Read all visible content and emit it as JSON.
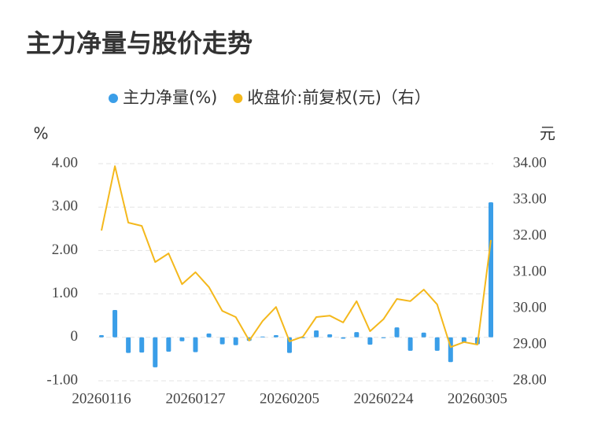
{
  "chart_data": {
    "type": "combo",
    "title": "主力净量与股价走势",
    "y_unit": "%",
    "y2_unit": "元",
    "categories": [
      "20260116",
      null,
      null,
      null,
      null,
      null,
      null,
      "20260127",
      null,
      null,
      null,
      null,
      null,
      null,
      "20260205",
      null,
      null,
      null,
      null,
      null,
      null,
      "20260224",
      null,
      null,
      null,
      null,
      null,
      null,
      "20260305",
      null
    ],
    "series": [
      {
        "name": "主力净量(%)",
        "type": "bar",
        "color": "#3a9ee8",
        "values": [
          0.05,
          0.63,
          -0.36,
          -0.35,
          -0.69,
          -0.33,
          -0.09,
          -0.34,
          0.09,
          -0.16,
          -0.18,
          -0.08,
          0.02,
          0.05,
          -0.36,
          -0.02,
          0.16,
          0.07,
          -0.03,
          0.12,
          -0.17,
          -0.02,
          0.23,
          -0.31,
          0.11,
          -0.31,
          -0.57,
          -0.12,
          -0.16,
          3.11
        ]
      },
      {
        "name": "收盘价:前复权(元)（右）",
        "type": "line",
        "axis": "y2",
        "color": "#f4b81c",
        "values": [
          32.15,
          33.93,
          32.37,
          32.28,
          31.28,
          31.52,
          30.67,
          31.0,
          30.59,
          29.93,
          29.76,
          29.11,
          29.65,
          30.04,
          29.09,
          29.22,
          29.76,
          29.8,
          29.61,
          30.2,
          29.37,
          29.7,
          30.26,
          30.2,
          30.52,
          30.11,
          28.93,
          29.07,
          29.0,
          31.89
        ]
      }
    ],
    "ylim": [
      -1,
      4
    ],
    "yticks": [
      {
        "value": -1,
        "label": "-1.00"
      },
      0,
      {
        "value": 1,
        "label": "1.00"
      },
      {
        "value": 2,
        "label": "2.00"
      },
      {
        "value": 3,
        "label": "3.00"
      },
      {
        "value": 4,
        "label": "4.00"
      }
    ],
    "y2lim": [
      28,
      34
    ],
    "y2ticks": [
      {
        "value": 28,
        "label": "28.00"
      },
      {
        "value": 29,
        "label": "29.00"
      },
      {
        "value": 30,
        "label": "30.00"
      },
      {
        "value": 31,
        "label": "31.00"
      },
      {
        "value": 32,
        "label": "32.00"
      },
      {
        "value": 33,
        "label": "33.00"
      },
      {
        "value": 34,
        "label": "34.00"
      }
    ],
    "grid": true,
    "legend": "top"
  }
}
